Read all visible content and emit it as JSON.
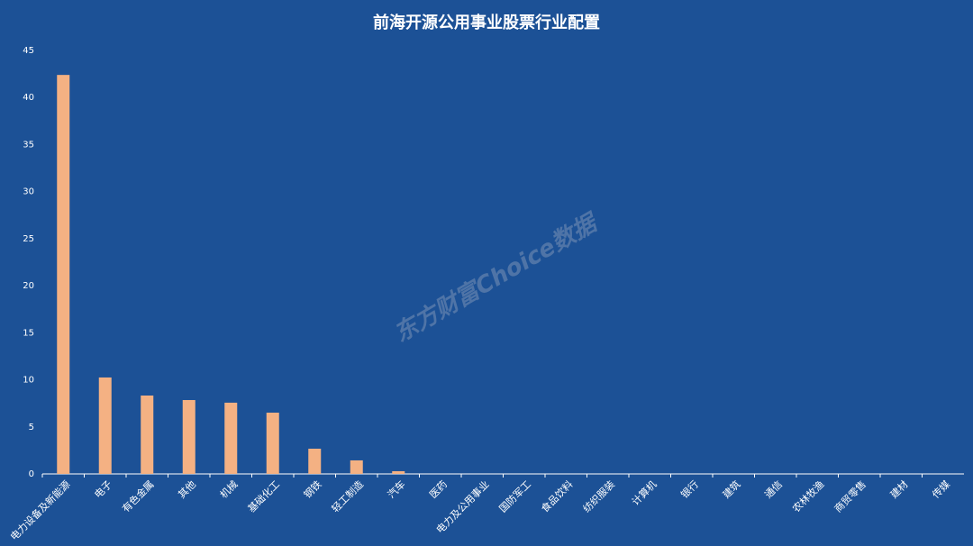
{
  "chart_data": {
    "type": "bar",
    "title": "前海开源公用事业股票行业配置",
    "categories": [
      "电力设备及新能源",
      "电子",
      "有色金属",
      "其他",
      "机械",
      "基础化工",
      "钢铁",
      "轻工制造",
      "汽车",
      "医药",
      "电力及公用事业",
      "国防军工",
      "食品饮料",
      "纺织服装",
      "计算机",
      "银行",
      "建筑",
      "通信",
      "农林牧渔",
      "商贸零售",
      "建材",
      "传媒"
    ],
    "values": [
      42.4,
      10.25,
      8.33,
      7.85,
      7.57,
      6.51,
      2.68,
      1.44,
      0.29,
      0,
      0,
      0,
      0,
      0,
      0,
      0,
      0,
      0,
      0,
      0,
      0,
      0
    ],
    "color": "#f4b183",
    "ylim": [
      0,
      45
    ],
    "yticks": [
      0,
      5,
      10,
      15,
      20,
      25,
      30,
      35,
      40,
      45
    ],
    "grid": false,
    "watermark": "东方财富Choice数据"
  }
}
